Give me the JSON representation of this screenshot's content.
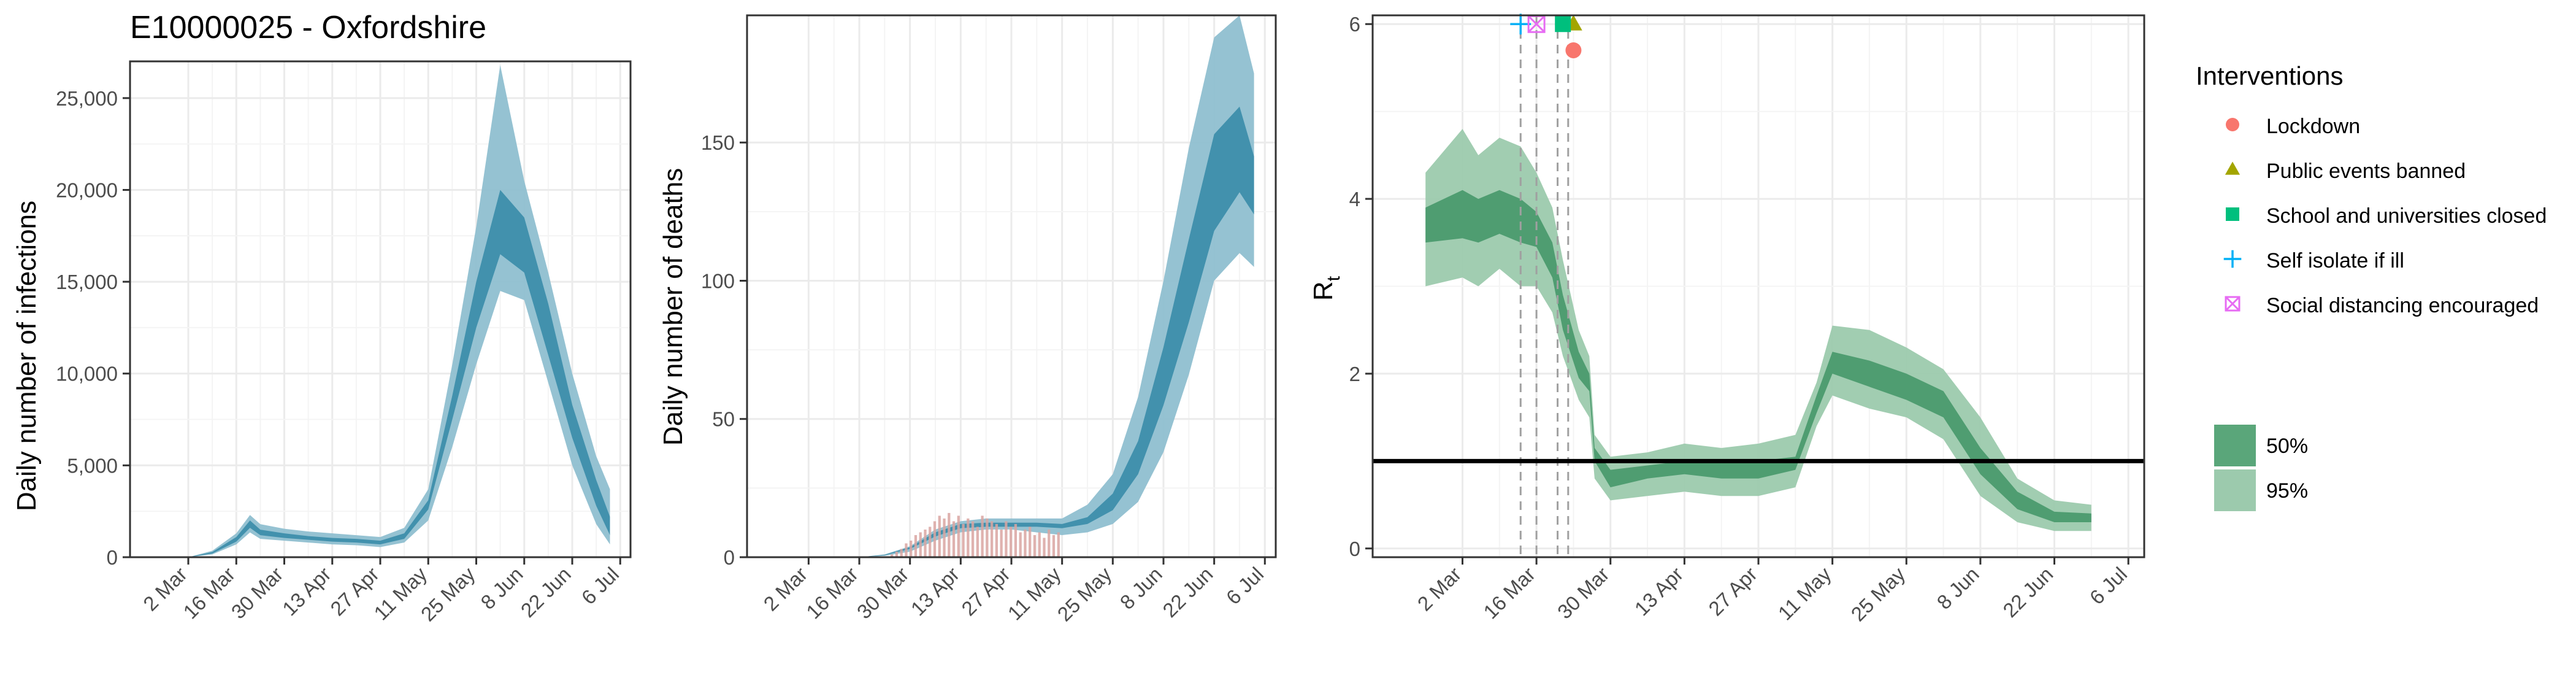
{
  "chart_data": [
    {
      "type": "area",
      "title": "E10000025 - Oxfordshire",
      "xlabel": "",
      "ylabel": "Daily number of infections",
      "x_ticks": [
        "2 Mar",
        "16 Mar",
        "30 Mar",
        "13 Apr",
        "27 Apr",
        "11 May",
        "25 May",
        "8 Jun",
        "22 Jun",
        "6 Jul"
      ],
      "y_ticks": [
        "0",
        "5,000",
        "10,000",
        "15,000",
        "20,000",
        "25,000"
      ],
      "ylim": [
        0,
        27000
      ],
      "x": [
        "2 Mar",
        "9 Mar",
        "16 Mar",
        "20 Mar",
        "23 Mar",
        "30 Mar",
        "6 Apr",
        "13 Apr",
        "20 Apr",
        "27 Apr",
        "4 May",
        "11 May",
        "18 May",
        "25 May",
        "1 Jun",
        "8 Jun",
        "15 Jun",
        "22 Jun",
        "29 Jun",
        "3 Jul"
      ],
      "series": [
        {
          "band": "95%",
          "lower": [
            0,
            150,
            700,
            1350,
            1000,
            900,
            800,
            700,
            650,
            550,
            800,
            2000,
            6000,
            10500,
            14500,
            14000,
            9500,
            5000,
            1800,
            700
          ],
          "upper": [
            0,
            350,
            1300,
            2300,
            1800,
            1550,
            1400,
            1300,
            1200,
            1100,
            1600,
            3700,
            10500,
            18000,
            26800,
            20500,
            15500,
            10000,
            5500,
            3700
          ]
        },
        {
          "band": "50%",
          "lower": [
            0,
            200,
            850,
            1600,
            1200,
            1050,
            950,
            850,
            800,
            700,
            1000,
            2600,
            7500,
            12500,
            16500,
            15500,
            11000,
            6500,
            2800,
            1200
          ],
          "upper": [
            0,
            280,
            1100,
            2000,
            1500,
            1300,
            1150,
            1050,
            1000,
            900,
            1300,
            3100,
            8800,
            15000,
            20000,
            18500,
            13800,
            8300,
            4200,
            2200
          ]
        }
      ],
      "color": "#3d8eab"
    },
    {
      "type": "area",
      "title": "",
      "xlabel": "",
      "ylabel": "Daily number of deaths",
      "x_ticks": [
        "2 Mar",
        "16 Mar",
        "30 Mar",
        "13 Apr",
        "27 Apr",
        "11 May",
        "25 May",
        "8 Jun",
        "22 Jun",
        "6 Jul"
      ],
      "y_ticks": [
        "0",
        "50",
        "100",
        "150"
      ],
      "ylim": [
        0,
        196
      ],
      "x": [
        "2 Mar",
        "16 Mar",
        "23 Mar",
        "30 Mar",
        "6 Apr",
        "13 Apr",
        "20 Apr",
        "27 Apr",
        "4 May",
        "11 May",
        "18 May",
        "25 May",
        "1 Jun",
        "8 Jun",
        "15 Jun",
        "22 Jun",
        "29 Jun",
        "3 Jul"
      ],
      "series": [
        {
          "band": "95%",
          "lower": [
            0,
            0,
            0.5,
            2,
            6,
            9,
            10,
            10,
            9,
            8,
            9,
            12,
            20,
            38,
            66,
            100,
            110,
            105
          ],
          "upper": [
            0,
            0,
            1,
            4,
            10,
            13,
            14,
            14,
            14,
            14,
            19,
            30,
            58,
            100,
            148,
            188,
            196,
            175
          ]
        },
        {
          "band": "50%",
          "lower": [
            0,
            0,
            0.7,
            3,
            7.5,
            10.5,
            11,
            11,
            11,
            10.5,
            12,
            17,
            30,
            55,
            85,
            118,
            132,
            124
          ],
          "upper": [
            0,
            0,
            0.9,
            3.6,
            9,
            12,
            12.5,
            12.5,
            12.5,
            12,
            14.5,
            23,
            42,
            76,
            115,
            153,
            163,
            145
          ]
        }
      ],
      "observed_deaths": [
        1,
        2,
        3,
        5,
        6,
        8,
        9,
        10,
        11,
        13,
        15,
        14,
        16,
        13,
        15,
        12,
        14,
        13,
        11,
        15,
        14,
        13,
        12,
        10,
        13,
        11,
        12,
        9,
        10,
        11,
        8,
        9,
        7,
        10,
        8,
        9
      ],
      "observed_deaths_dates": [
        "25 Mar",
        "10 May"
      ],
      "bar_color": "#d9a4a1",
      "color": "#3d8eab"
    },
    {
      "type": "area",
      "title": "",
      "xlabel": "",
      "ylabel": "R",
      "ylabel_subscript": "t",
      "x_ticks": [
        "2 Mar",
        "16 Mar",
        "30 Mar",
        "13 Apr",
        "27 Apr",
        "11 May",
        "25 May",
        "8 Jun",
        "22 Jun",
        "6 Jul"
      ],
      "y_ticks": [
        "0",
        "2",
        "4",
        "6"
      ],
      "ylim": [
        -0.1,
        6.1
      ],
      "x": [
        "24 Feb",
        "2 Mar",
        "5 Mar",
        "9 Mar",
        "13 Mar",
        "16 Mar",
        "19 Mar",
        "21 Mar",
        "24 Mar",
        "26 Mar",
        "27 Mar",
        "30 Mar",
        "6 Apr",
        "13 Apr",
        "20 Apr",
        "27 Apr",
        "4 May",
        "8 May",
        "11 May",
        "18 May",
        "25 May",
        "1 Jun",
        "8 Jun",
        "15 Jun",
        "22 Jun",
        "29 Jun"
      ],
      "series": [
        {
          "band": "95%",
          "lower": [
            3.0,
            3.1,
            3.0,
            3.2,
            3.0,
            3.0,
            2.7,
            2.2,
            1.7,
            1.5,
            0.8,
            0.55,
            0.6,
            0.65,
            0.6,
            0.6,
            0.7,
            1.4,
            1.75,
            1.6,
            1.5,
            1.25,
            0.6,
            0.3,
            0.2,
            0.2
          ],
          "upper": [
            4.3,
            4.8,
            4.5,
            4.7,
            4.6,
            4.3,
            3.9,
            3.3,
            2.5,
            2.2,
            1.3,
            1.05,
            1.1,
            1.2,
            1.15,
            1.2,
            1.3,
            1.9,
            2.55,
            2.5,
            2.3,
            2.05,
            1.5,
            0.8,
            0.55,
            0.5
          ]
        },
        {
          "band": "50%",
          "lower": [
            3.5,
            3.55,
            3.5,
            3.6,
            3.5,
            3.45,
            3.1,
            2.5,
            1.95,
            1.8,
            1.0,
            0.7,
            0.8,
            0.85,
            0.8,
            0.8,
            0.9,
            1.55,
            2.0,
            1.85,
            1.7,
            1.5,
            0.85,
            0.45,
            0.3,
            0.3
          ],
          "upper": [
            3.9,
            4.1,
            4.0,
            4.1,
            4.0,
            3.85,
            3.5,
            2.9,
            2.25,
            2.0,
            1.15,
            0.9,
            0.95,
            1.0,
            1.0,
            1.0,
            1.05,
            1.75,
            2.25,
            2.15,
            2.0,
            1.8,
            1.15,
            0.65,
            0.42,
            0.4
          ]
        }
      ],
      "reference_line": 1,
      "intervention_dates": [
        "13 Mar",
        "16 Mar",
        "20 Mar",
        "22 Mar"
      ],
      "interventions": [
        {
          "name": "Lockdown",
          "date": "23 Mar",
          "y": 5.7,
          "shape": "circle",
          "color": "#f8766d"
        },
        {
          "name": "Public events banned",
          "date": "23 Mar",
          "y": 6.0,
          "shape": "triangle",
          "color": "#a3a500"
        },
        {
          "name": "School and universities closed",
          "date": "21 Mar",
          "y": 6.0,
          "shape": "square",
          "color": "#00bf7d"
        },
        {
          "name": "Self isolate if ill",
          "date": "13 Mar",
          "y": 6.0,
          "shape": "plus",
          "color": "#00b0f6"
        },
        {
          "name": "Social distancing encouraged",
          "date": "16 Mar",
          "y": 6.0,
          "shape": "boxcross",
          "color": "#e76bf3"
        }
      ],
      "color": "#2e8b57"
    }
  ],
  "legend": {
    "title": "Interventions",
    "items": [
      {
        "label": "Lockdown",
        "shape": "circle",
        "color": "#f8766d"
      },
      {
        "label": "Public events banned",
        "shape": "triangle",
        "color": "#a3a500"
      },
      {
        "label": "School and universities closed",
        "shape": "square",
        "color": "#00bf7d"
      },
      {
        "label": "Self isolate if ill",
        "shape": "plus",
        "color": "#00b0f6"
      },
      {
        "label": "Social distancing encouraged",
        "shape": "boxcross",
        "color": "#e76bf3"
      }
    ],
    "band_items": [
      {
        "label": "50%",
        "color": "#5aa67a"
      },
      {
        "label": "95%",
        "color": "#9ccaad"
      }
    ]
  }
}
